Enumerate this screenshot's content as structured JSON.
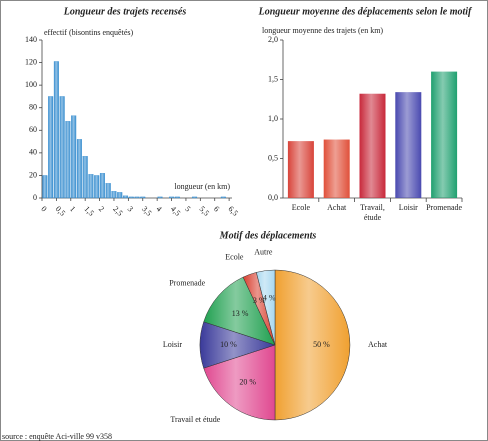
{
  "chart_data": [
    {
      "type": "histogram",
      "title": "Longueur des trajets recensés",
      "y_label": "effectif (bisontins enquêtés)",
      "x_label": "longueur (en km)",
      "color": "#3a8fd0",
      "bins": [
        0,
        0.2,
        0.4,
        0.6,
        0.8,
        1.0,
        1.2,
        1.4,
        1.6,
        1.8,
        2.0,
        2.2,
        2.4,
        2.6,
        2.8,
        3.0,
        3.2,
        3.4,
        3.6,
        3.8,
        4.0,
        4.2,
        4.4,
        4.6,
        4.8,
        5.0,
        5.2,
        5.4,
        5.6,
        5.8,
        6.0,
        6.2,
        6.4
      ],
      "values": [
        20,
        90,
        121,
        90,
        68,
        73,
        52,
        37,
        21,
        20,
        22,
        13,
        6,
        5,
        2,
        1,
        1,
        1,
        0,
        0,
        1,
        0,
        1,
        1,
        0,
        0,
        1,
        0,
        0,
        0,
        0,
        1
      ],
      "xlim": [
        0,
        6.6
      ],
      "ylim": [
        0,
        140
      ],
      "xticks": [
        0,
        {
          "value": 0.5,
          "label": "0,5"
        },
        1,
        {
          "value": 1.5,
          "label": "1,5"
        },
        2,
        {
          "value": 2.5,
          "label": "2,5"
        },
        3,
        {
          "value": 3.5,
          "label": "3,5"
        },
        4,
        {
          "value": 4.5,
          "label": "4,5"
        },
        5,
        {
          "value": 5.5,
          "label": "5,5"
        },
        6,
        {
          "value": 6.5,
          "label": "6,5"
        }
      ],
      "yticks": [
        0,
        20,
        40,
        60,
        80,
        100,
        120,
        140
      ]
    },
    {
      "type": "bar",
      "title": "Longueur moyenne des déplacements selon le motif",
      "y_label": "longueur moyenne des trajets (en km)",
      "categories": [
        "Ecole",
        "Achat",
        "Travail, étude",
        "Loisir",
        "Promenade"
      ],
      "values": [
        0.72,
        0.74,
        1.32,
        1.34,
        1.6
      ],
      "colors": [
        "#d8443a",
        "#e0503a",
        "#c8283a",
        "#4a4ab0",
        "#20a070"
      ],
      "ylim": [
        0,
        2
      ],
      "yticks": [
        {
          "value": 0,
          "label": "0,0"
        },
        {
          "value": 0.5,
          "label": "0,5"
        },
        {
          "value": 1,
          "label": "1,0"
        },
        {
          "value": 1.5,
          "label": "1,5"
        },
        {
          "value": 2,
          "label": "2,0"
        }
      ]
    },
    {
      "type": "pie",
      "title": "Motif des déplacements",
      "categories": [
        "Achat",
        "Travail et étude",
        "Loisir",
        "Promenade",
        "Ecole",
        "Autre"
      ],
      "values": [
        50,
        20,
        10,
        13,
        3,
        4
      ],
      "value_labels": [
        "50 %",
        "20 %",
        "10 %",
        "13 %",
        "3 %",
        "4 %"
      ],
      "colors": [
        "#f0a030",
        "#e04890",
        "#3a3a9a",
        "#20a050",
        "#d84030",
        "#a8d8f0"
      ]
    }
  ],
  "source": "source : enquête Aci-ville 99 v358"
}
